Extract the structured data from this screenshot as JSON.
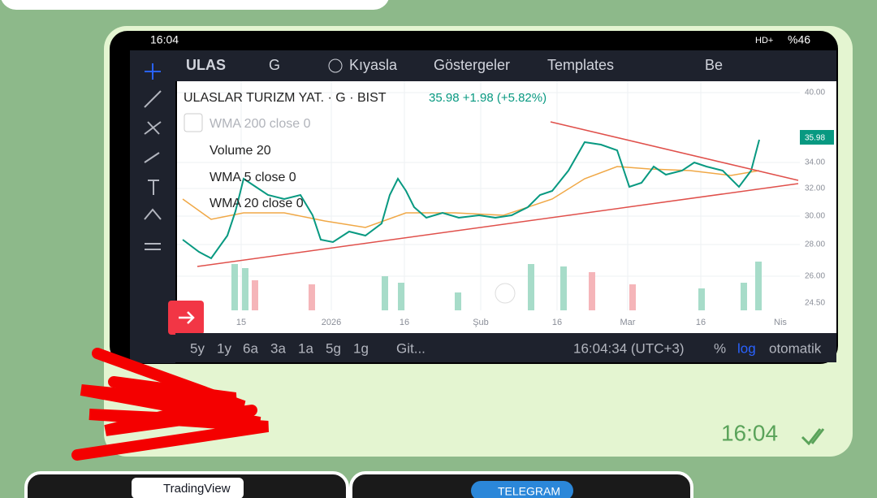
{
  "status_bar": {
    "time": "16:04",
    "network": "HD+",
    "battery": "%46"
  },
  "toolbar": {
    "symbol": "ULAS",
    "interval": "G",
    "compare": "Kıyasla",
    "indicators": "Göstergeler",
    "templates": "Templates",
    "layout": "Be"
  },
  "legend": {
    "title": "ULASLAR TURIZM YAT. · G · BIST",
    "quote": "35.98 +1.98 (+5.82%)",
    "indicators": [
      "WMA 200 close 0",
      "Volume 20",
      "WMA 5 close 0",
      "WMA 20 close 0"
    ]
  },
  "price_axis": {
    "labels": [
      "40.00",
      "34.00",
      "32.00",
      "30.00",
      "28.00",
      "26.00",
      "24.50"
    ],
    "last_price": "35.98"
  },
  "time_axis": [
    "15",
    "2026",
    "16",
    "Şub",
    "16",
    "Mar",
    "16",
    "Nis"
  ],
  "range_bar": {
    "ranges": [
      "5y",
      "1y",
      "6a",
      "3a",
      "1a",
      "5g",
      "1g"
    ],
    "goto": "Git...",
    "clock": "16:04:34 (UTC+3)",
    "percent": "%",
    "log": "log",
    "auto": "otomatik"
  },
  "message": {
    "time": "16:04"
  },
  "previews": [
    "TradingView",
    "TELEGRAM"
  ]
}
